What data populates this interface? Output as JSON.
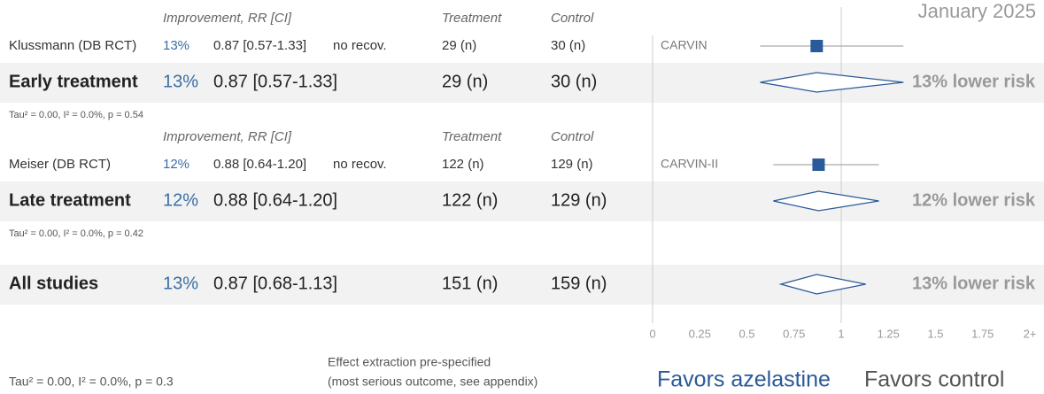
{
  "date": "January 2025",
  "chart_data": {
    "type": "forest",
    "column_headers": {
      "improvement": "Improvement, RR [CI]",
      "treatment": "Treatment",
      "control": "Control"
    },
    "xlim": [
      0,
      2
    ],
    "xticks": [
      0,
      0.25,
      0.5,
      0.75,
      1,
      1.25,
      1.5,
      1.75,
      {
        "value": 2,
        "label": "2+"
      }
    ],
    "groups": [
      {
        "studies": [
          {
            "name": "Klussmann (DB RCT)",
            "improvement": "13%",
            "rr": "0.87 [0.57-1.33]",
            "outcome": "no recov.",
            "treatment": "29 (n)",
            "control": "30 (n)",
            "trial": "CARVIN",
            "estimate": 0.87,
            "ci": [
              0.57,
              1.33
            ]
          }
        ],
        "summary": {
          "name": "Early treatment",
          "improvement": "13%",
          "rr": "0.87 [0.57-1.33]",
          "treatment": "29 (n)",
          "control": "30 (n)",
          "estimate": 0.87,
          "ci": [
            0.57,
            1.33
          ],
          "result": "13% lower risk"
        },
        "heterogeneity": "Tau² = 0.00, I² = 0.0%, p = 0.54"
      },
      {
        "studies": [
          {
            "name": "Meiser (DB RCT)",
            "improvement": "12%",
            "rr": "0.88 [0.64-1.20]",
            "outcome": "no recov.",
            "treatment": "122 (n)",
            "control": "129 (n)",
            "trial": "CARVIN-II",
            "estimate": 0.88,
            "ci": [
              0.64,
              1.2
            ]
          }
        ],
        "summary": {
          "name": "Late treatment",
          "improvement": "12%",
          "rr": "0.88 [0.64-1.20]",
          "treatment": "122 (n)",
          "control": "129 (n)",
          "estimate": 0.88,
          "ci": [
            0.64,
            1.2
          ],
          "result": "12% lower risk"
        },
        "heterogeneity": "Tau² = 0.00, I² = 0.0%, p = 0.42"
      }
    ],
    "overall": {
      "name": "All studies",
      "improvement": "13%",
      "rr": "0.87 [0.68-1.13]",
      "treatment": "151 (n)",
      "control": "159 (n)",
      "estimate": 0.87,
      "ci": [
        0.68,
        1.13
      ],
      "result": "13% lower risk",
      "heterogeneity": "Tau² = 0.00, I² = 0.0%, p = 0.3"
    },
    "footnote": [
      "Effect extraction pre-specified",
      "(most serious outcome, see appendix)"
    ],
    "favors": [
      "Favors azelastine",
      "Favors control"
    ]
  }
}
